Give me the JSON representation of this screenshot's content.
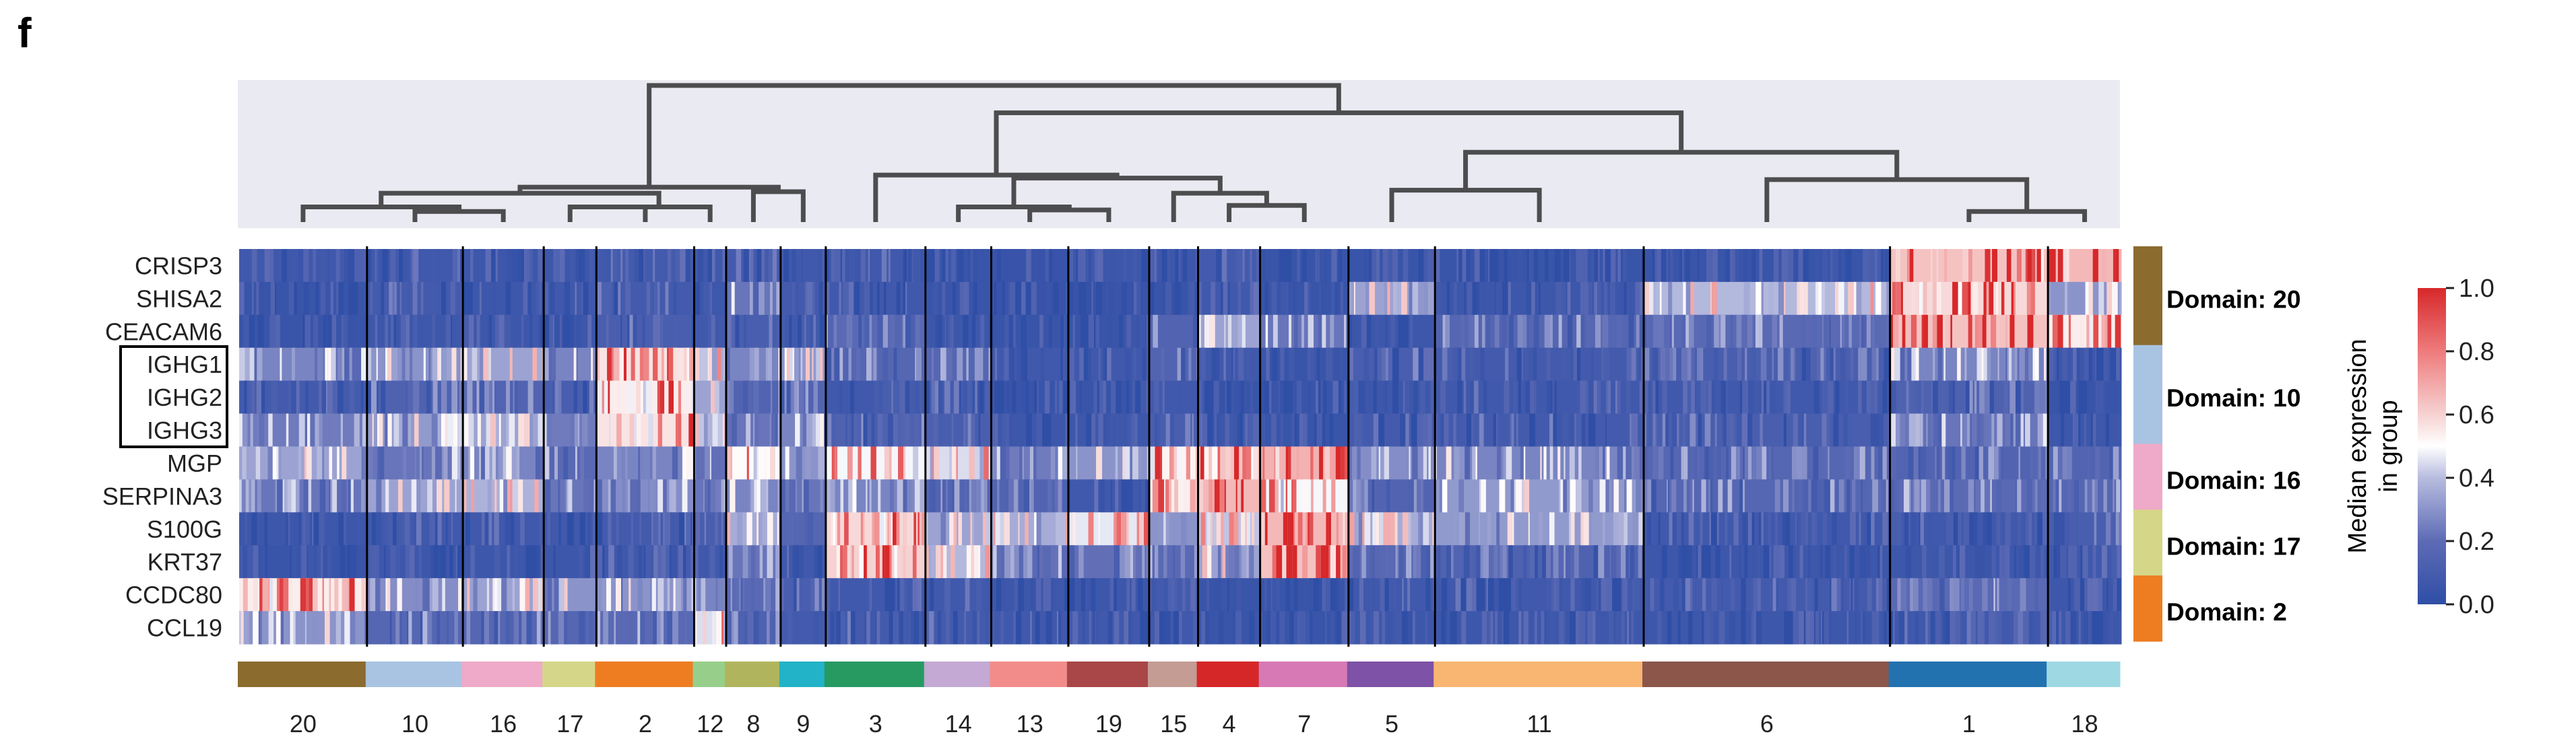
{
  "panel_letter": "f",
  "chart_data": {
    "type": "heatmap",
    "title": "",
    "genes": [
      "CRISP3",
      "SHISA2",
      "CEACAM6",
      "IGHG1",
      "IGHG2",
      "IGHG3",
      "MGP",
      "SERPINA3",
      "S100G",
      "KRT37",
      "CCDC80",
      "CCL19"
    ],
    "boxed_genes": [
      "IGHG1",
      "IGHG2",
      "IGHG3"
    ],
    "clusters": [
      "20",
      "10",
      "16",
      "17",
      "2",
      "12",
      "8",
      "9",
      "3",
      "14",
      "13",
      "19",
      "15",
      "4",
      "7",
      "5",
      "11",
      "6",
      "1",
      "18"
    ],
    "cluster_widths": [
      0.068,
      0.051,
      0.043,
      0.028,
      0.052,
      0.017,
      0.029,
      0.024,
      0.053,
      0.035,
      0.041,
      0.043,
      0.026,
      0.033,
      0.047,
      0.046,
      0.111,
      0.131,
      0.084,
      0.039
    ],
    "cluster_colors": [
      "#8b6b2e",
      "#a9c3e2",
      "#eeaac8",
      "#d6d689",
      "#ee7d22",
      "#97cf8a",
      "#b0b55d",
      "#22b3c8",
      "#279a62",
      "#c3a9d3",
      "#f28c8a",
      "#a94647",
      "#c49c94",
      "#d62728",
      "#d679b4",
      "#7e52a6",
      "#f8b672",
      "#8c564b",
      "#2372b0",
      "#9ed8e3"
    ],
    "matrix": [
      [
        0.1,
        0.1,
        0.08,
        0.08,
        0.12,
        0.1,
        0.12,
        0.1,
        0.1,
        0.06,
        0.05,
        0.08,
        0.08,
        0.12,
        0.06,
        0.06,
        0.06,
        0.06,
        0.85,
        0.88
      ],
      [
        0.06,
        0.12,
        0.08,
        0.1,
        0.12,
        0.08,
        0.3,
        0.12,
        0.1,
        0.06,
        0.05,
        0.05,
        0.06,
        0.1,
        0.06,
        0.45,
        0.08,
        0.52,
        0.78,
        0.4
      ],
      [
        0.06,
        0.08,
        0.08,
        0.08,
        0.15,
        0.1,
        0.15,
        0.1,
        0.25,
        0.08,
        0.06,
        0.06,
        0.2,
        0.45,
        0.3,
        0.08,
        0.22,
        0.25,
        0.85,
        0.72
      ],
      [
        0.35,
        0.4,
        0.45,
        0.35,
        0.75,
        0.55,
        0.35,
        0.42,
        0.22,
        0.22,
        0.1,
        0.1,
        0.2,
        0.1,
        0.06,
        0.15,
        0.12,
        0.15,
        0.35,
        0.08
      ],
      [
        0.12,
        0.18,
        0.2,
        0.15,
        0.72,
        0.45,
        0.2,
        0.2,
        0.1,
        0.12,
        0.06,
        0.06,
        0.1,
        0.06,
        0.06,
        0.08,
        0.1,
        0.1,
        0.18,
        0.06
      ],
      [
        0.32,
        0.42,
        0.45,
        0.32,
        0.75,
        0.55,
        0.3,
        0.35,
        0.18,
        0.15,
        0.08,
        0.08,
        0.15,
        0.08,
        0.06,
        0.12,
        0.12,
        0.15,
        0.3,
        0.08
      ],
      [
        0.45,
        0.3,
        0.35,
        0.25,
        0.35,
        0.28,
        0.68,
        0.4,
        0.65,
        0.6,
        0.32,
        0.4,
        0.7,
        0.85,
        0.9,
        0.38,
        0.35,
        0.22,
        0.2,
        0.2
      ],
      [
        0.3,
        0.45,
        0.5,
        0.3,
        0.38,
        0.3,
        0.35,
        0.3,
        0.35,
        0.2,
        0.2,
        0.1,
        0.72,
        0.88,
        0.65,
        0.2,
        0.42,
        0.22,
        0.25,
        0.22
      ],
      [
        0.08,
        0.1,
        0.1,
        0.1,
        0.12,
        0.15,
        0.48,
        0.22,
        0.78,
        0.45,
        0.48,
        0.62,
        0.4,
        0.55,
        0.88,
        0.48,
        0.42,
        0.1,
        0.1,
        0.15
      ],
      [
        0.06,
        0.08,
        0.08,
        0.08,
        0.1,
        0.1,
        0.3,
        0.1,
        0.8,
        0.52,
        0.25,
        0.28,
        0.25,
        0.45,
        0.85,
        0.2,
        0.18,
        0.08,
        0.08,
        0.1
      ],
      [
        0.72,
        0.38,
        0.45,
        0.4,
        0.4,
        0.35,
        0.25,
        0.15,
        0.1,
        0.1,
        0.08,
        0.08,
        0.12,
        0.06,
        0.06,
        0.1,
        0.1,
        0.12,
        0.25,
        0.08
      ],
      [
        0.4,
        0.22,
        0.22,
        0.22,
        0.25,
        0.6,
        0.18,
        0.12,
        0.12,
        0.12,
        0.1,
        0.1,
        0.1,
        0.06,
        0.06,
        0.08,
        0.08,
        0.08,
        0.1,
        0.08
      ]
    ],
    "dendrogram": {
      "leaf_order": [
        "20",
        "10",
        "16",
        "17",
        "2",
        "12",
        "8",
        "9",
        "3",
        "14",
        "13",
        "19",
        "15",
        "4",
        "7",
        "5",
        "11",
        "6",
        "1",
        "18"
      ],
      "merges": [
        {
          "left": "10",
          "right": "16",
          "height": 0.07
        },
        {
          "left": "20",
          "right": "10+16",
          "height": 0.1
        },
        {
          "left": "17",
          "right": "2",
          "height": 0.1
        },
        {
          "left": "17+2",
          "right": "12",
          "height": 0.1
        },
        {
          "left": "20+10+16",
          "right": "17+2+12",
          "height": 0.19
        },
        {
          "left": "8",
          "right": "9",
          "height": 0.2
        },
        {
          "left": "left_a",
          "right": "8+9",
          "height": 0.23
        },
        {
          "left": "13",
          "right": "19",
          "height": 0.08
        },
        {
          "left": "14",
          "right": "13+19",
          "height": 0.1
        },
        {
          "left": "4",
          "right": "7",
          "height": 0.11
        },
        {
          "left": "15",
          "right": "4+7",
          "height": 0.19
        },
        {
          "left": "14+13+19",
          "right": "15+4+7",
          "height": 0.29
        },
        {
          "left": "3",
          "right": "mid_a",
          "height": 0.31
        },
        {
          "left": "5",
          "right": "11",
          "height": 0.21
        },
        {
          "left": "1",
          "right": "18",
          "height": 0.07
        },
        {
          "left": "6",
          "right": "1+18",
          "height": 0.28
        },
        {
          "left": "5+11",
          "right": "6+1+18",
          "height": 0.46
        },
        {
          "left": "mid_b",
          "right": "right_a",
          "height": 0.72
        },
        {
          "left": "left_b",
          "right": "mid_right",
          "height": 0.9
        }
      ]
    },
    "domains": [
      {
        "label": "Domain: 20",
        "color": "#8b6b2e",
        "genes": 3
      },
      {
        "label": "Domain: 10",
        "color": "#a9c3e2",
        "genes": 3
      },
      {
        "label": "Domain: 16",
        "color": "#eeaac8",
        "genes": 2
      },
      {
        "label": "Domain: 17",
        "color": "#d6d689",
        "genes": 2
      },
      {
        "label": "Domain: 2",
        "color": "#ee7d22",
        "genes": 2
      }
    ],
    "colorbar": {
      "title_line1": "Median expression",
      "title_line2": "in group",
      "range": [
        0.0,
        1.0
      ],
      "ticks": [
        "0.0",
        "0.2",
        "0.4",
        "0.6",
        "0.8",
        "1.0"
      ],
      "tick_values": [
        0.0,
        0.2,
        0.4,
        0.6,
        0.8,
        1.0
      ],
      "colormap": "coolwarm (blue-white-red)",
      "low_color": "#2f4ea6",
      "mid_color": "#ffffff",
      "high_color": "#d7282a"
    },
    "xlabel": "",
    "ylabel": ""
  }
}
